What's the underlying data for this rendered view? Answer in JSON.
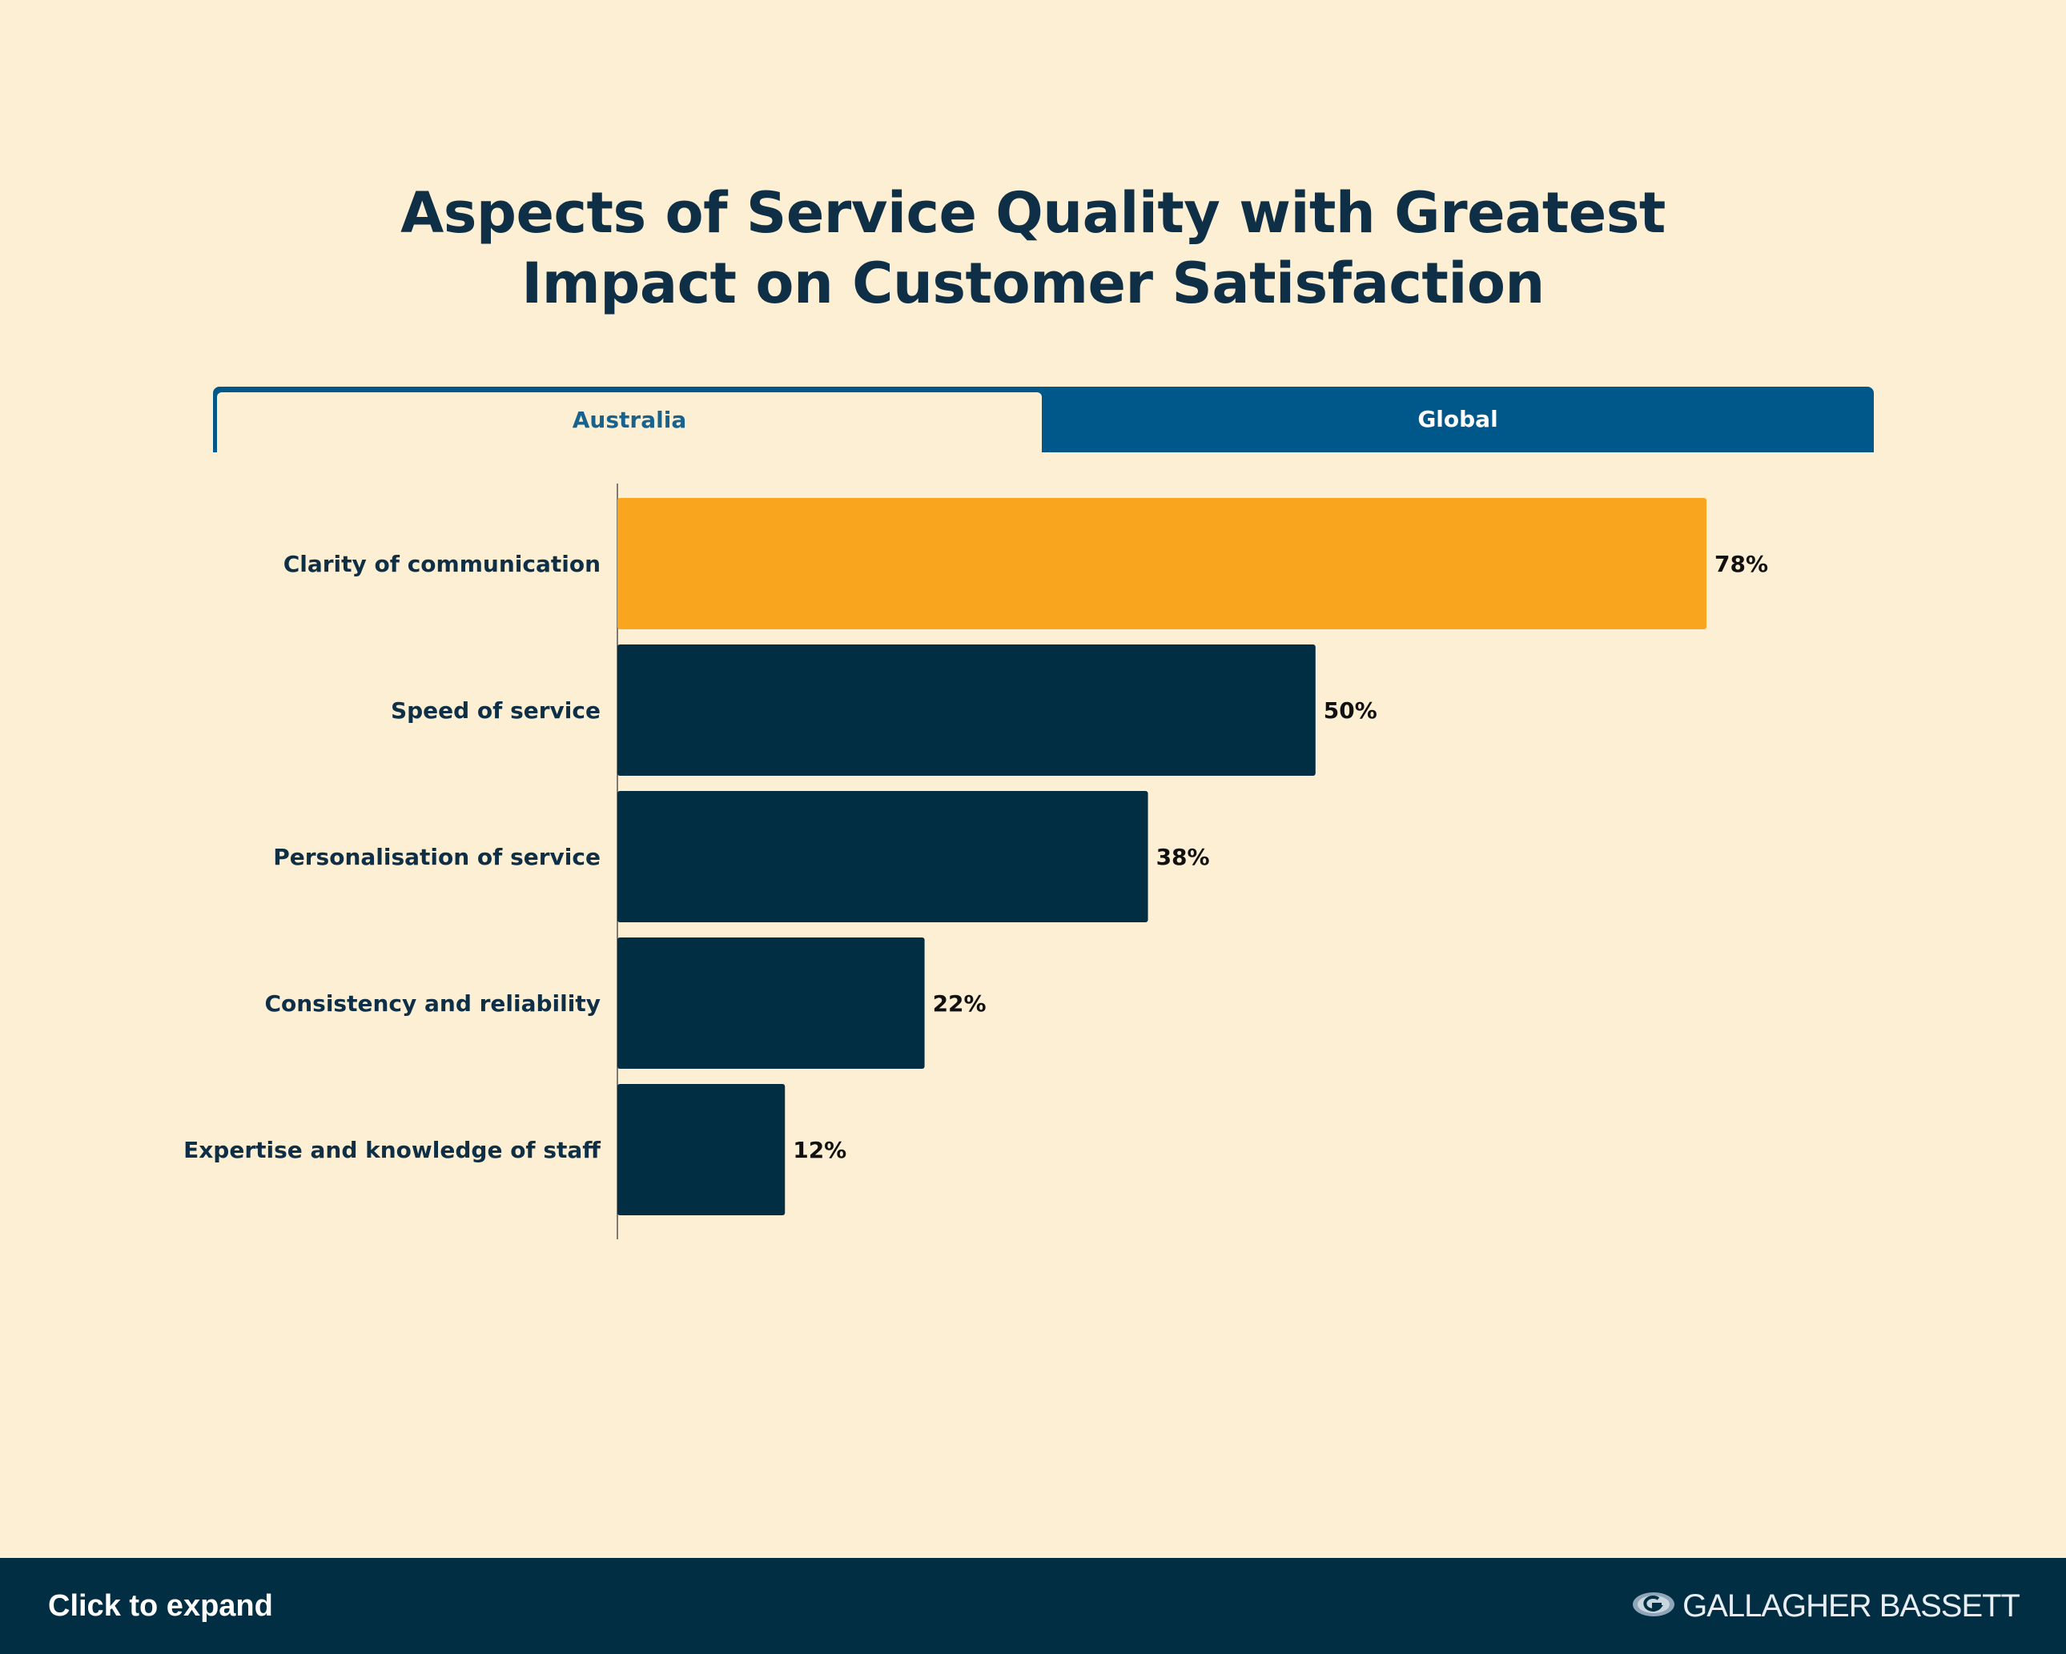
{
  "title": {
    "line1": "Aspects of Service Quality with Greatest",
    "line2": "Impact on Customer Satisfaction"
  },
  "tabs": [
    {
      "label": "Australia",
      "active": true
    },
    {
      "label": "Global",
      "active": false
    }
  ],
  "chart_data": {
    "type": "bar",
    "orientation": "horizontal",
    "categories": [
      "Clarity of communication",
      "Speed of service",
      "Personalisation of service",
      "Consistency and reliability",
      "Expertise and knowledge of staff"
    ],
    "values": [
      78,
      50,
      38,
      22,
      12
    ],
    "data_labels": [
      "78%",
      "50%",
      "38%",
      "22%",
      "12%"
    ],
    "value_unit": "%",
    "xlim": [
      0,
      100
    ],
    "grid": false,
    "legend": "none",
    "colors": {
      "highlight": "#f9a61e",
      "default": "#022e43",
      "category_label": "#0e2f45",
      "value_label": "#111111"
    }
  },
  "footer": {
    "expand_label": "Click to expand",
    "brand": "GALLAGHER BASSETT",
    "brand_icon": "gallagher-g-globe-icon"
  }
}
